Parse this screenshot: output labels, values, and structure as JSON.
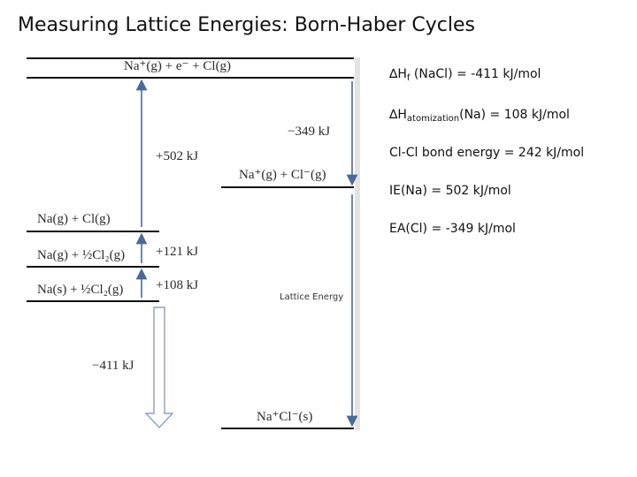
{
  "title": "Measuring Lattice Energies: Born-Haber Cycles",
  "diagram": {
    "levels": {
      "top": "Na⁺(g) + e⁻ + Cl(g)",
      "ions": "Na⁺(g) + Cl⁻(g)",
      "atoms": "Na(g) + Cl(g)",
      "gas_half": "Na(g) + ½Cl₂(g)",
      "solid_half": "Na(s) + ½Cl₂(g)",
      "product": "Na⁺Cl⁻(s)"
    },
    "energies": {
      "ea": "−349 kJ",
      "ie": "+502 kJ",
      "cl_half": "+121 kJ",
      "na_atom": "+108 kJ",
      "formation": "−411 kJ"
    },
    "lattice_label": "Lattice Energy"
  },
  "facts": [
    {
      "symbol": "∆H",
      "sub": "f",
      "text": " (NaCl) = -411 kJ/mol"
    },
    {
      "symbol": "∆H",
      "sub": "atomization",
      "text": "(Na) = 108 kJ/mol"
    },
    {
      "symbol": "",
      "sub": "",
      "text": "Cl-Cl bond energy = 242 kJ/mol"
    },
    {
      "symbol": "",
      "sub": "",
      "text": "IE(Na) = 502 kJ/mol"
    },
    {
      "symbol": "",
      "sub": "",
      "text": "EA(Cl) = -349 kJ/mol"
    }
  ]
}
